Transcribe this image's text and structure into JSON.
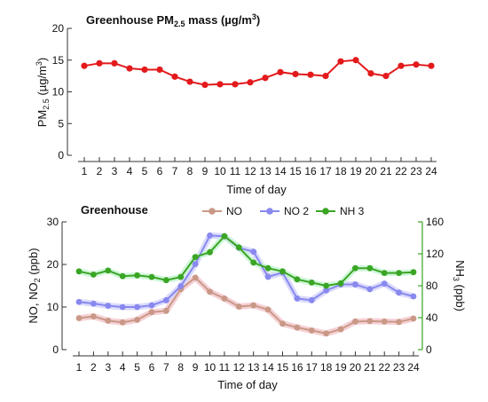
{
  "chart_data": [
    {
      "type": "line",
      "title": "Greenhouse  PM2.5 mass (µg/m³)",
      "title_parts": {
        "pre": "Greenhouse  PM",
        "sub": "2.5",
        "post": " mass (µg/m",
        "sup": "3",
        "end": ")"
      },
      "xlabel": "Time of day",
      "ylabel": "PM2.5 (µg/m³)",
      "ylabel_parts": {
        "pre": "PM",
        "sub": "2.5",
        "post": " (µg/m",
        "sup": "3",
        "end": ")"
      },
      "ylim": [
        0,
        20
      ],
      "yticks": [
        "0",
        "5",
        "10",
        "15",
        "20"
      ],
      "x": [
        1,
        2,
        3,
        4,
        5,
        6,
        7,
        8,
        9,
        10,
        11,
        12,
        13,
        14,
        15,
        16,
        17,
        18,
        19,
        20,
        21,
        22,
        23,
        24
      ],
      "series": [
        {
          "name": "",
          "color": "#e31a1c",
          "values": [
            14.1,
            14.5,
            14.5,
            13.7,
            13.5,
            13.5,
            12.4,
            11.6,
            11.1,
            11.2,
            11.2,
            11.5,
            12.2,
            13.1,
            12.8,
            12.7,
            12.5,
            14.8,
            15.0,
            12.9,
            12.5,
            14.1,
            14.3,
            14.1
          ]
        }
      ]
    },
    {
      "type": "line",
      "title": "Greenhouse",
      "xlabel": "Time of day",
      "ylabel": "NO, NO2 (ppb)",
      "ylabel_parts": {
        "pre": "NO, NO",
        "sub": "2",
        "post": " (ppb)"
      },
      "ylabel_right": "NH3 (ppb)",
      "ylabel_right_parts": {
        "pre": "NH",
        "sub": "3",
        "post": " (ppb)"
      },
      "ylim": [
        0,
        30
      ],
      "yticks": [
        "0",
        "10",
        "20",
        "30"
      ],
      "ylim_right": [
        0,
        160
      ],
      "yticks_right": [
        "0",
        "40",
        "80",
        "120",
        "160"
      ],
      "x": [
        1,
        2,
        3,
        4,
        5,
        6,
        7,
        8,
        9,
        10,
        11,
        12,
        13,
        14,
        15,
        16,
        17,
        18,
        19,
        20,
        21,
        22,
        23,
        24
      ],
      "legend": [
        "NO",
        "NO 2",
        "NH 3"
      ],
      "series": [
        {
          "name": "NO",
          "axis": "left",
          "color": "#c99886",
          "values": [
            7.4,
            7.8,
            6.8,
            6.4,
            7.0,
            8.8,
            9.1,
            14.2,
            16.9,
            13.6,
            12.0,
            10.1,
            10.4,
            9.4,
            6.1,
            5.2,
            4.5,
            3.8,
            4.8,
            6.6,
            6.7,
            6.6,
            6.5,
            7.3
          ]
        },
        {
          "name": "NO 2",
          "axis": "left",
          "color": "#8888ee",
          "values": [
            11.2,
            10.8,
            10.3,
            10.0,
            10.0,
            10.4,
            11.6,
            14.9,
            20.1,
            26.8,
            26.6,
            23.9,
            23.0,
            17.1,
            18.1,
            12.0,
            11.6,
            13.9,
            15.3,
            15.3,
            14.2,
            15.5,
            13.4,
            12.5
          ]
        },
        {
          "name": "NH 3",
          "axis": "right",
          "color": "#3aa524",
          "values": [
            98,
            94,
            99,
            92,
            93,
            91,
            87,
            91,
            116,
            122,
            142,
            128,
            109,
            102,
            98,
            88,
            84,
            80,
            83,
            102,
            102,
            96,
            96,
            97
          ]
        }
      ]
    }
  ]
}
